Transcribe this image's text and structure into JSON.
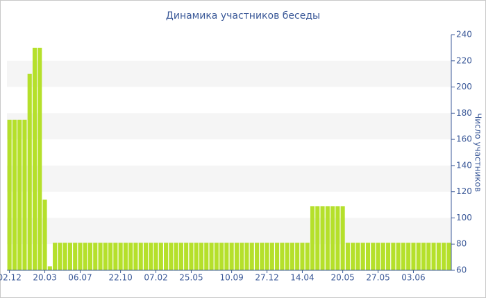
{
  "chart_data": {
    "type": "bar",
    "title": "Динамика участников беседы",
    "y_axis_label": "Число участников",
    "categories": [
      "02.12",
      null,
      null,
      null,
      null,
      null,
      null,
      "20.03",
      null,
      null,
      null,
      null,
      null,
      null,
      "06.07",
      null,
      null,
      null,
      null,
      null,
      null,
      null,
      "22.10",
      null,
      null,
      null,
      null,
      null,
      null,
      "07.02",
      null,
      null,
      null,
      null,
      null,
      null,
      "25.05",
      null,
      null,
      null,
      null,
      null,
      null,
      null,
      "10.09",
      null,
      null,
      null,
      null,
      null,
      null,
      "27.12",
      null,
      null,
      null,
      null,
      null,
      null,
      "14.04",
      null,
      null,
      null,
      null,
      null,
      null,
      null,
      "20.05",
      null,
      null,
      null,
      null,
      null,
      null,
      "27.05",
      null,
      null,
      null,
      null,
      null,
      null,
      "03.06",
      null,
      null,
      null,
      null,
      null,
      null,
      null
    ],
    "values": [
      175,
      175,
      175,
      175,
      210,
      230,
      230,
      114,
      63,
      81,
      81,
      81,
      81,
      81,
      81,
      81,
      81,
      81,
      81,
      81,
      81,
      81,
      81,
      81,
      81,
      81,
      81,
      81,
      81,
      81,
      81,
      81,
      81,
      81,
      81,
      81,
      81,
      81,
      81,
      81,
      81,
      81,
      81,
      81,
      81,
      81,
      81,
      81,
      81,
      81,
      81,
      81,
      81,
      81,
      81,
      81,
      81,
      81,
      81,
      81,
      109,
      109,
      109,
      109,
      109,
      109,
      109,
      81,
      81,
      81,
      81,
      81,
      81,
      81,
      81,
      81,
      81,
      81,
      81,
      81,
      81,
      81,
      81,
      81,
      81,
      81,
      81,
      81
    ],
    "color": "#b5e02b",
    "ylim": [
      60,
      240
    ],
    "yticks": [
      60,
      80,
      100,
      120,
      140,
      160,
      180,
      200,
      220,
      240
    ],
    "grid": "bands",
    "y_axis_side": "right"
  }
}
